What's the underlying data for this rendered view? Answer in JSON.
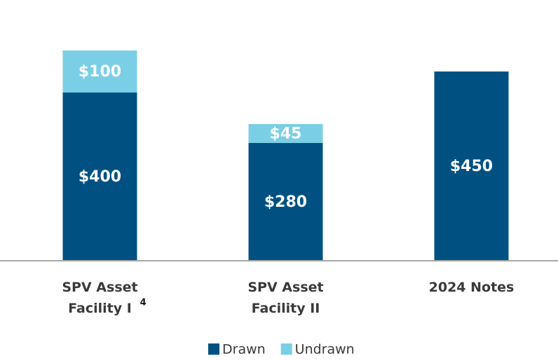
{
  "chart_data": {
    "type": "stacked_bar",
    "categories": [
      "SPV Asset Facility I",
      "SPV Asset Facility II",
      "2024 Notes"
    ],
    "category_footnotes": [
      "4",
      null,
      null
    ],
    "series": [
      {
        "name": "Drawn",
        "color": "#005182",
        "values": [
          400,
          280,
          450
        ],
        "value_labels": [
          "$400",
          "$280",
          "$450"
        ]
      },
      {
        "name": "Undrawn",
        "color": "#7acfe6",
        "values": [
          100,
          45,
          null
        ],
        "value_labels": [
          "$100",
          "$45",
          null
        ]
      }
    ],
    "ylim": [
      0,
      600
    ]
  }
}
